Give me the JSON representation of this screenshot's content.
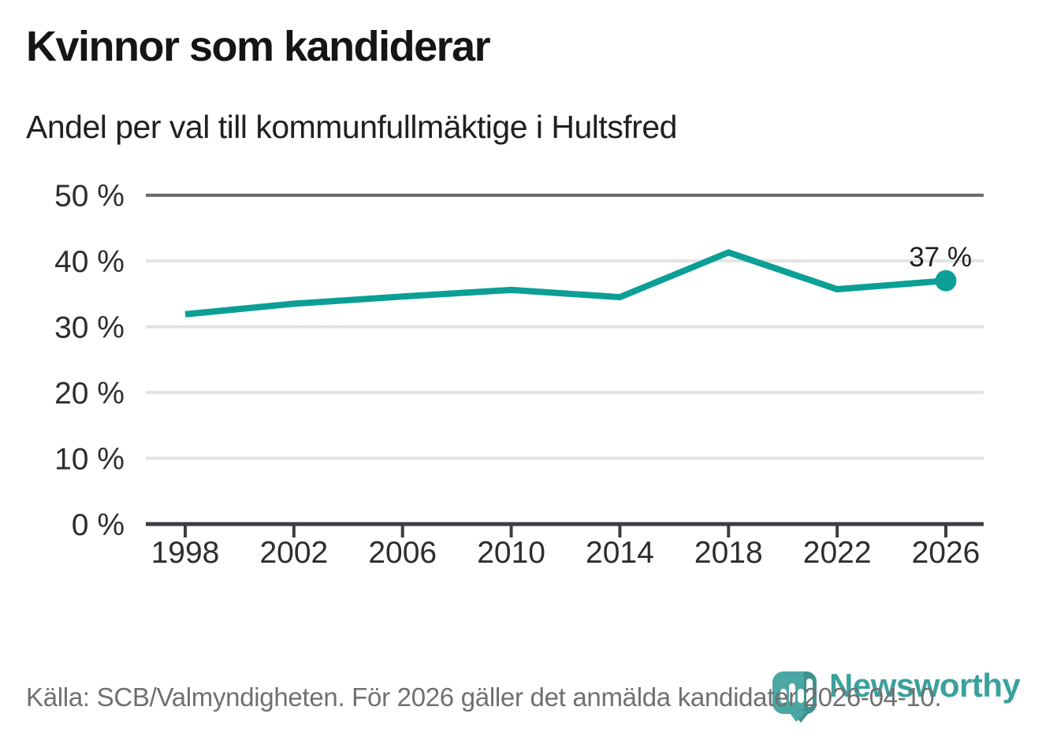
{
  "header": {
    "title": "Kvinnor som kandiderar",
    "subtitle": "Andel per val till kommunfullmäktige i Hultsfred"
  },
  "chart_data": {
    "type": "line",
    "title": "Kvinnor som kandiderar",
    "subtitle": "Andel per val till kommunfullmäktige i Hultsfred",
    "categories": [
      "1998",
      "2002",
      "2006",
      "2010",
      "2014",
      "2018",
      "2022",
      "2026"
    ],
    "values": [
      31.9,
      33.5,
      34.6,
      35.6,
      34.5,
      41.3,
      35.7,
      37
    ],
    "xlabel": "",
    "ylabel": "",
    "ylim": [
      0,
      50
    ],
    "yticks": [
      {
        "value": 50,
        "label": "50 %"
      },
      {
        "value": 40,
        "label": "40 %"
      },
      {
        "value": 30,
        "label": "30 %"
      },
      {
        "value": 20,
        "label": "20 %"
      },
      {
        "value": 10,
        "label": "10 %"
      },
      {
        "value": 0,
        "label": "0 %"
      }
    ],
    "grid": "horizontal",
    "legend": "none",
    "end_label": "37 %",
    "line_color": "#0b9f96",
    "marker_color": "#0b9f96",
    "grid_light_color": "#e3e3e3",
    "grid_dark_color": "#66666d",
    "axis_color": "#3c3c43"
  },
  "footer": {
    "source": "Källa: SCB/Valmyndigheten. För 2026 gäller det anmälda kandidater 2026-04-10.",
    "brand": "Newsworthy",
    "brand_color": "#3ba19c",
    "icon_color": "#4ba7a3",
    "icon_shade_color": "#3e928e"
  }
}
